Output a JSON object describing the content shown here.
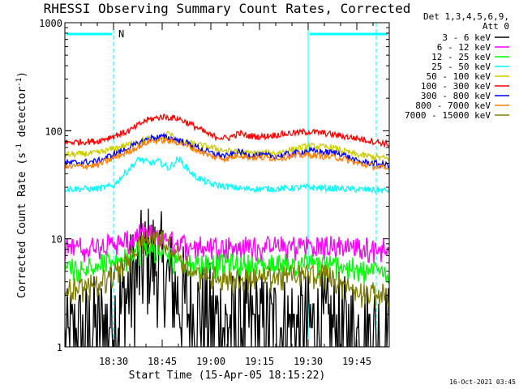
{
  "chart_data": {
    "type": "line",
    "title": "RHESSI Observing Summary Count Rates, Corrected",
    "xlabel": "Start Time (15-Apr-05 18:15:22)",
    "ylabel_main": "Corrected Count Rate (s",
    "ylabel_sup1": "-1",
    "ylabel_mid": " detector",
    "ylabel_sup2": "-1",
    "ylabel_end": ")",
    "y_scale": "log",
    "ylim": [
      1,
      1000
    ],
    "xlim_minutes": [
      0,
      100
    ],
    "x_ticks": [
      {
        "minute": 15,
        "label": "18:30"
      },
      {
        "minute": 30,
        "label": "18:45"
      },
      {
        "minute": 45,
        "label": "19:00"
      },
      {
        "minute": 60,
        "label": "19:15"
      },
      {
        "minute": 75,
        "label": "19:30"
      },
      {
        "minute": 90,
        "label": "19:45"
      }
    ],
    "y_ticks": [
      {
        "value": 1,
        "label": "1"
      },
      {
        "value": 10,
        "label": "10"
      },
      {
        "value": 100,
        "label": "100"
      },
      {
        "value": 1000,
        "label": "1000"
      }
    ],
    "legend_header": [
      "Det 1,3,4,5,6,9,",
      "Att 0"
    ],
    "series": [
      {
        "name": "3 - 6 keV",
        "color": "#000000",
        "points": [
          [
            0,
            1
          ],
          [
            8,
            1.3
          ],
          [
            12,
            1.5
          ],
          [
            16,
            2
          ],
          [
            19,
            3
          ],
          [
            23,
            5
          ],
          [
            26,
            6.5
          ],
          [
            29,
            5.5
          ],
          [
            32,
            4
          ],
          [
            35,
            2.8
          ],
          [
            40,
            2
          ],
          [
            50,
            1.6
          ],
          [
            60,
            1.5
          ],
          [
            70,
            1.5
          ],
          [
            80,
            1.5
          ],
          [
            90,
            1.3
          ],
          [
            100,
            1.2
          ]
        ]
      },
      {
        "name": "6 - 12 keV",
        "color": "#ff00ff",
        "points": [
          [
            0,
            8.5
          ],
          [
            10,
            8.8
          ],
          [
            20,
            10
          ],
          [
            24,
            11.8
          ],
          [
            28,
            11
          ],
          [
            34,
            9.6
          ],
          [
            40,
            9
          ],
          [
            60,
            8.8
          ],
          [
            80,
            9
          ],
          [
            100,
            8.5
          ]
        ]
      },
      {
        "name": "12 - 25 keV",
        "color": "#00ff00",
        "points": [
          [
            0,
            5.5
          ],
          [
            10,
            6
          ],
          [
            20,
            7.2
          ],
          [
            24,
            8.5
          ],
          [
            28,
            8
          ],
          [
            34,
            6.8
          ],
          [
            40,
            6.2
          ],
          [
            60,
            6
          ],
          [
            80,
            6.2
          ],
          [
            90,
            5.5
          ],
          [
            100,
            5.2
          ]
        ]
      },
      {
        "name": "25 - 50 keV",
        "color": "#00ffff",
        "points": [
          [
            0,
            29
          ],
          [
            10,
            29
          ],
          [
            15,
            31
          ],
          [
            20,
            45
          ],
          [
            23,
            55
          ],
          [
            26,
            50
          ],
          [
            29,
            52
          ],
          [
            32,
            45
          ],
          [
            35,
            55
          ],
          [
            40,
            38
          ],
          [
            45,
            32
          ],
          [
            55,
            29
          ],
          [
            65,
            29
          ],
          [
            75,
            30
          ],
          [
            85,
            29
          ],
          [
            100,
            28
          ]
        ]
      },
      {
        "name": "50 - 100 keV",
        "color": "#cccc00",
        "points": [
          [
            0,
            60
          ],
          [
            10,
            62
          ],
          [
            20,
            75
          ],
          [
            26,
            85
          ],
          [
            30,
            85
          ],
          [
            32,
            95
          ],
          [
            35,
            80
          ],
          [
            40,
            75
          ],
          [
            45,
            70
          ],
          [
            50,
            65
          ],
          [
            55,
            62
          ],
          [
            65,
            62
          ],
          [
            75,
            72
          ],
          [
            82,
            70
          ],
          [
            90,
            60
          ],
          [
            100,
            55
          ]
        ]
      },
      {
        "name": "100 - 300 keV",
        "color": "#ff0000",
        "points": [
          [
            0,
            78
          ],
          [
            10,
            80
          ],
          [
            20,
            100
          ],
          [
            25,
            125
          ],
          [
            30,
            135
          ],
          [
            35,
            130
          ],
          [
            40,
            110
          ],
          [
            45,
            90
          ],
          [
            50,
            85
          ],
          [
            54,
            95
          ],
          [
            56,
            90
          ],
          [
            60,
            88
          ],
          [
            70,
            95
          ],
          [
            75,
            98
          ],
          [
            80,
            95
          ],
          [
            90,
            85
          ],
          [
            100,
            75
          ]
        ]
      },
      {
        "name": "300 - 800 keV",
        "color": "#0000ff",
        "points": [
          [
            0,
            50
          ],
          [
            10,
            52
          ],
          [
            20,
            70
          ],
          [
            26,
            85
          ],
          [
            30,
            88
          ],
          [
            35,
            82
          ],
          [
            40,
            72
          ],
          [
            45,
            62
          ],
          [
            50,
            58
          ],
          [
            54,
            64
          ],
          [
            56,
            60
          ],
          [
            65,
            58
          ],
          [
            75,
            65
          ],
          [
            85,
            62
          ],
          [
            90,
            52
          ],
          [
            100,
            48
          ]
        ]
      },
      {
        "name": "800 - 7000 keV",
        "color": "#ff8000",
        "points": [
          [
            0,
            46
          ],
          [
            10,
            48
          ],
          [
            20,
            65
          ],
          [
            26,
            80
          ],
          [
            30,
            82
          ],
          [
            35,
            78
          ],
          [
            40,
            68
          ],
          [
            45,
            58
          ],
          [
            50,
            55
          ],
          [
            54,
            60
          ],
          [
            56,
            57
          ],
          [
            65,
            56
          ],
          [
            75,
            60
          ],
          [
            85,
            56
          ],
          [
            90,
            50
          ],
          [
            100,
            44
          ]
        ]
      },
      {
        "name": "7000 - 15000 keV",
        "color": "#808000",
        "points": [
          [
            0,
            3.5
          ],
          [
            10,
            4
          ],
          [
            20,
            6.5
          ],
          [
            24,
            10
          ],
          [
            28,
            11
          ],
          [
            34,
            8
          ],
          [
            40,
            5
          ],
          [
            50,
            4.5
          ],
          [
            60,
            4.5
          ],
          [
            70,
            4.8
          ],
          [
            80,
            5
          ],
          [
            85,
            4
          ],
          [
            90,
            3.4
          ],
          [
            100,
            3.2
          ]
        ]
      }
    ],
    "night_intervals_minutes": [
      [
        0,
        15
      ],
      [
        75,
        100
      ]
    ],
    "saa_marker_label": "N",
    "footer_timestamp": "16-Oct-2021 03:45"
  }
}
